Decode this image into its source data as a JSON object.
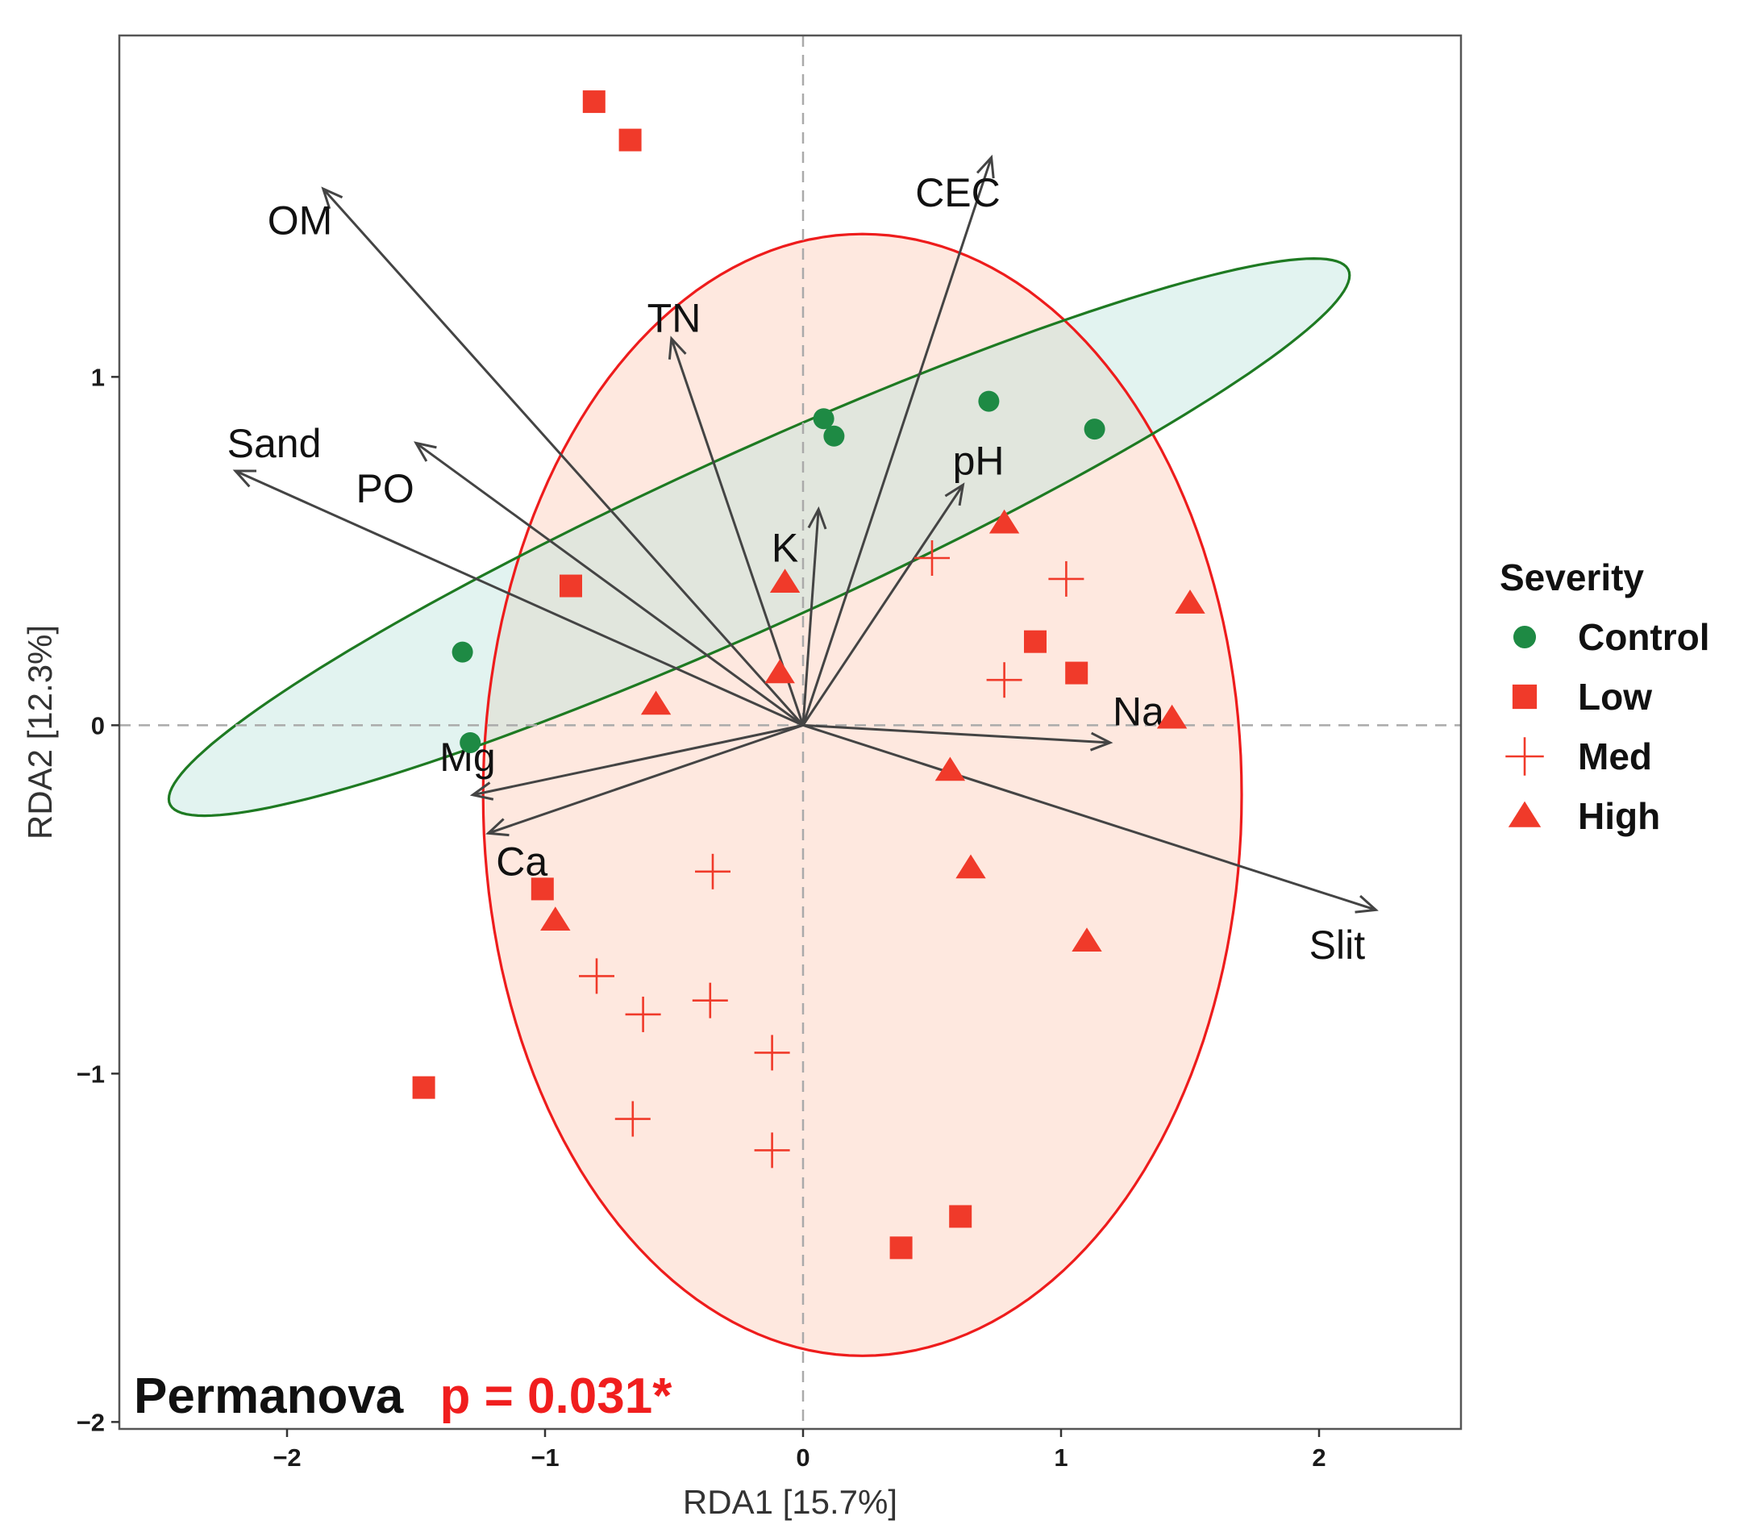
{
  "chart_data": {
    "type": "scatter",
    "subtype": "RDA biplot",
    "xlabel": "RDA1 [15.7%]",
    "ylabel": "RDA2 [12.3%]",
    "xlim": [
      -2.65,
      2.55
    ],
    "ylim": [
      -2.02,
      1.98
    ],
    "x_ticks": [
      {
        "value": -2,
        "label": "−2"
      },
      {
        "value": -1,
        "label": "−1"
      },
      {
        "value": 0,
        "label": "0"
      },
      {
        "value": 1,
        "label": "1"
      },
      {
        "value": 2,
        "label": "2"
      }
    ],
    "y_ticks": [
      {
        "value": -2,
        "label": "−2"
      },
      {
        "value": -1,
        "label": "−1"
      },
      {
        "value": 0,
        "label": "0"
      },
      {
        "value": 1,
        "label": "1"
      }
    ],
    "grid": false,
    "reference_lines": {
      "x": 0,
      "y": 0,
      "style": "dashed"
    },
    "legend": {
      "title": "Severity",
      "position": "right",
      "entries": [
        {
          "label": "Control",
          "shape": "circle",
          "color": "#1e8a44"
        },
        {
          "label": "Low",
          "shape": "square",
          "color": "#f03a2a"
        },
        {
          "label": "Med",
          "shape": "plus",
          "color": "#f03a2a"
        },
        {
          "label": "High",
          "shape": "triangle",
          "color": "#f03a2a"
        }
      ]
    },
    "series": [
      {
        "name": "Control",
        "points": [
          [
            0.08,
            0.88
          ],
          [
            0.12,
            0.83
          ],
          [
            0.72,
            0.93
          ],
          [
            1.13,
            0.85
          ],
          [
            -1.32,
            0.21
          ],
          [
            -1.29,
            -0.05
          ]
        ]
      },
      {
        "name": "Low",
        "points": [
          [
            -0.81,
            1.79
          ],
          [
            -0.67,
            1.68
          ],
          [
            -0.9,
            0.4
          ],
          [
            0.9,
            0.24
          ],
          [
            1.06,
            0.15
          ],
          [
            -1.01,
            -0.47
          ],
          [
            -1.47,
            -1.04
          ],
          [
            0.61,
            -1.41
          ],
          [
            0.38,
            -1.5
          ]
        ]
      },
      {
        "name": "Med",
        "points": [
          [
            0.5,
            0.48
          ],
          [
            1.02,
            0.42
          ],
          [
            0.78,
            0.13
          ],
          [
            -0.35,
            -0.42
          ],
          [
            -0.8,
            -0.72
          ],
          [
            -0.62,
            -0.83
          ],
          [
            -0.36,
            -0.79
          ],
          [
            -0.12,
            -0.94
          ],
          [
            -0.66,
            -1.13
          ],
          [
            -0.12,
            -1.22
          ]
        ]
      },
      {
        "name": "High",
        "points": [
          [
            0.78,
            0.58
          ],
          [
            -0.07,
            0.41
          ],
          [
            -0.09,
            0.15
          ],
          [
            1.5,
            0.35
          ],
          [
            -0.57,
            0.06
          ],
          [
            1.43,
            0.02
          ],
          [
            0.57,
            -0.13
          ],
          [
            0.65,
            -0.41
          ],
          [
            -0.96,
            -0.56
          ],
          [
            1.1,
            -0.62
          ]
        ]
      }
    ],
    "vectors": [
      {
        "name": "OM",
        "x": -1.86,
        "y": 1.54,
        "label_at": [
          -1.95,
          1.44
        ]
      },
      {
        "name": "CEC",
        "x": 0.73,
        "y": 1.63,
        "label_at": [
          0.6,
          1.52
        ]
      },
      {
        "name": "TN",
        "x": -0.51,
        "y": 1.11,
        "label_at": [
          -0.5,
          1.16
        ]
      },
      {
        "name": "Sand",
        "x": -2.2,
        "y": 0.73,
        "label_at": [
          -2.05,
          0.8
        ]
      },
      {
        "name": "PO",
        "x": -1.5,
        "y": 0.81,
        "label_at": [
          -1.62,
          0.67
        ]
      },
      {
        "name": "K",
        "x": 0.06,
        "y": 0.62,
        "label_at": [
          -0.07,
          0.5
        ]
      },
      {
        "name": "pH",
        "x": 0.62,
        "y": 0.69,
        "label_at": [
          0.68,
          0.75
        ]
      },
      {
        "name": "Na",
        "x": 1.19,
        "y": -0.05,
        "label_at": [
          1.3,
          0.03
        ]
      },
      {
        "name": "Mg",
        "x": -1.28,
        "y": -0.2,
        "label_at": [
          -1.3,
          -0.1
        ]
      },
      {
        "name": "Ca",
        "x": -1.22,
        "y": -0.31,
        "label_at": [
          -1.09,
          -0.4
        ]
      },
      {
        "name": "Slit",
        "x": 2.22,
        "y": -0.53,
        "label_at": [
          2.07,
          -0.64
        ]
      }
    ],
    "ellipses": [
      {
        "group": "Control",
        "color": "#1e7a22",
        "fill": "#d7f0ed",
        "cx": -0.17,
        "cy": 0.54,
        "rx": 2.41,
        "ry": 0.26,
        "angle_deg": 18.4
      },
      {
        "group": "Severity",
        "color": "#ee1c1c",
        "fill": "#fde0d4",
        "cx": 0.23,
        "cy": -0.2,
        "rx": 1.47,
        "ry": 1.61,
        "angle_deg": 0
      }
    ],
    "annotation": {
      "label": "Permanova",
      "value": "p = 0.031*",
      "label_color": "#111111",
      "value_color": "#f01e1e"
    }
  }
}
